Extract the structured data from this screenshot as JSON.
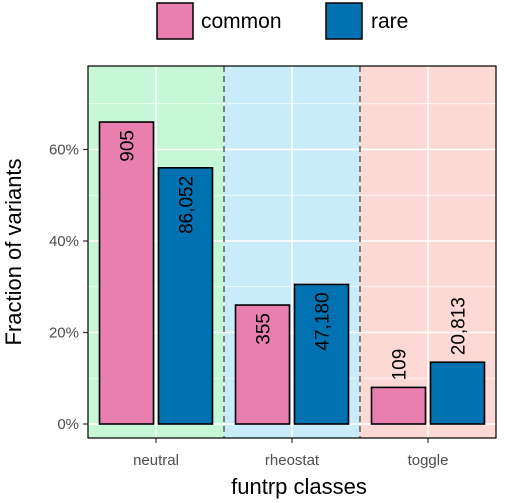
{
  "chart_data": {
    "type": "bar",
    "xlabel": "funtrp classes",
    "ylabel": "Fraction of variants",
    "categories": [
      "neutral",
      "rheostat",
      "toggle"
    ],
    "category_bands": [
      "#c6f7d6",
      "#c9ecfb",
      "#fdd9d6"
    ],
    "ylim": [
      0,
      0.78
    ],
    "yticks": [
      0,
      0.2,
      0.4,
      0.6
    ],
    "ytick_labels": [
      "0%",
      "20%",
      "40%",
      "60%"
    ],
    "grid": true,
    "legend_position": "top",
    "series": [
      {
        "name": "common",
        "color": "#e87faf",
        "values": [
          0.66,
          0.26,
          0.08
        ],
        "labels": [
          "905",
          "355",
          "109"
        ]
      },
      {
        "name": "rare",
        "color": "#0072b2",
        "values": [
          0.56,
          0.305,
          0.135
        ],
        "labels": [
          "86,052",
          "47,180",
          "20,813"
        ]
      }
    ]
  }
}
